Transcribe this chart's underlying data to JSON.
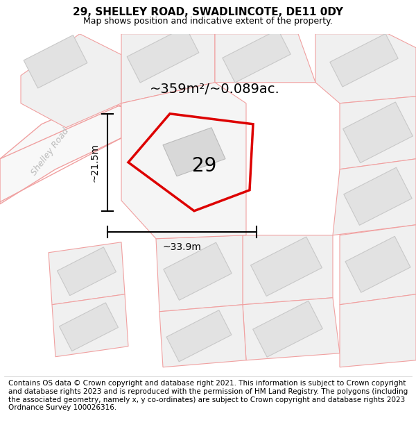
{
  "title": "29, SHELLEY ROAD, SWADLINCOTE, DE11 0DY",
  "subtitle": "Map shows position and indicative extent of the property.",
  "footer": "Contains OS data © Crown copyright and database right 2021. This information is subject to Crown copyright and database rights 2023 and is reproduced with the permission of HM Land Registry. The polygons (including the associated geometry, namely x, y co-ordinates) are subject to Crown copyright and database rights 2023 Ordnance Survey 100026316.",
  "area_label": "~359m²/~0.089ac.",
  "plot_number": "29",
  "dim_width": "~33.9m",
  "dim_height": "~21.5m",
  "road_label": "Shelley Road",
  "background_color": "#ffffff",
  "map_bg": "#f7f7f7",
  "plot_outline_color": "#dd0000",
  "building_fill": "#e0e0e0",
  "building_outline": "#bbbbbb",
  "road_outline": "#f0a0a0",
  "dim_line_color": "#000000",
  "road_label_color": "#bbbbbb",
  "title_fontsize": 11,
  "subtitle_fontsize": 9,
  "footer_fontsize": 7.5,
  "plot_label_fontsize": 20,
  "area_label_fontsize": 14,
  "dim_label_fontsize": 10,
  "road_label_fontsize": 9
}
